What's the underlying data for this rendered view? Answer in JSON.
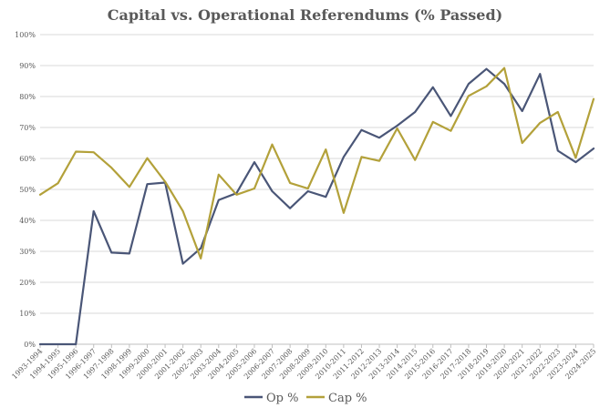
{
  "chart_data": {
    "type": "line",
    "title": "Capital vs. Operational Referendums (% Passed)",
    "xlabel": "",
    "ylabel": "",
    "ylim": [
      0,
      100
    ],
    "y_ticks": [
      "0%",
      "10%",
      "20%",
      "30%",
      "40%",
      "50%",
      "60%",
      "70%",
      "80%",
      "90%",
      "100%"
    ],
    "grid": true,
    "legend_position": "bottom",
    "categories": [
      "1993-1994",
      "1994-1995",
      "1995-1996",
      "1996-1997",
      "1997-1998",
      "1998-1999",
      "1999-2000",
      "2000-2001",
      "2001-2002",
      "2002-2003",
      "2003-2004",
      "2004-2005",
      "2005-2006",
      "2006-2007",
      "2007-2008",
      "2008-2009",
      "2009-2010",
      "2010-2011",
      "2011-2012",
      "2012-2013",
      "2013-2014",
      "2014-2015",
      "2015-2016",
      "2016-2017",
      "2017-2018",
      "2018-2019",
      "2019-2020",
      "2020-2021",
      "2021-2022",
      "2022-2023",
      "2023-2024",
      "2024-2025"
    ],
    "series": [
      {
        "name": "Op %",
        "color": "#4a5677",
        "values": [
          0,
          0,
          0,
          43,
          29.6,
          29.3,
          51.7,
          52.2,
          26,
          31,
          46.6,
          48.8,
          58.8,
          49.4,
          43.9,
          49.4,
          47.6,
          60.5,
          69.2,
          66.7,
          70.6,
          75,
          83,
          73.7,
          84.1,
          88.9,
          84.1,
          75.3,
          87.3,
          62.5,
          58.8,
          63.2
        ]
      },
      {
        "name": "Cap %",
        "color": "#b3a13a",
        "values": [
          48.3,
          52,
          62.2,
          62,
          57,
          50.8,
          60.1,
          52.5,
          43,
          27.7,
          54.8,
          48.3,
          50.3,
          64.5,
          52.1,
          50.3,
          62.9,
          42.4,
          60.5,
          59.2,
          69.7,
          59.5,
          71.8,
          68.9,
          80.2,
          83.3,
          89.2,
          65,
          71.5,
          75,
          60.2,
          79.2
        ]
      }
    ]
  }
}
